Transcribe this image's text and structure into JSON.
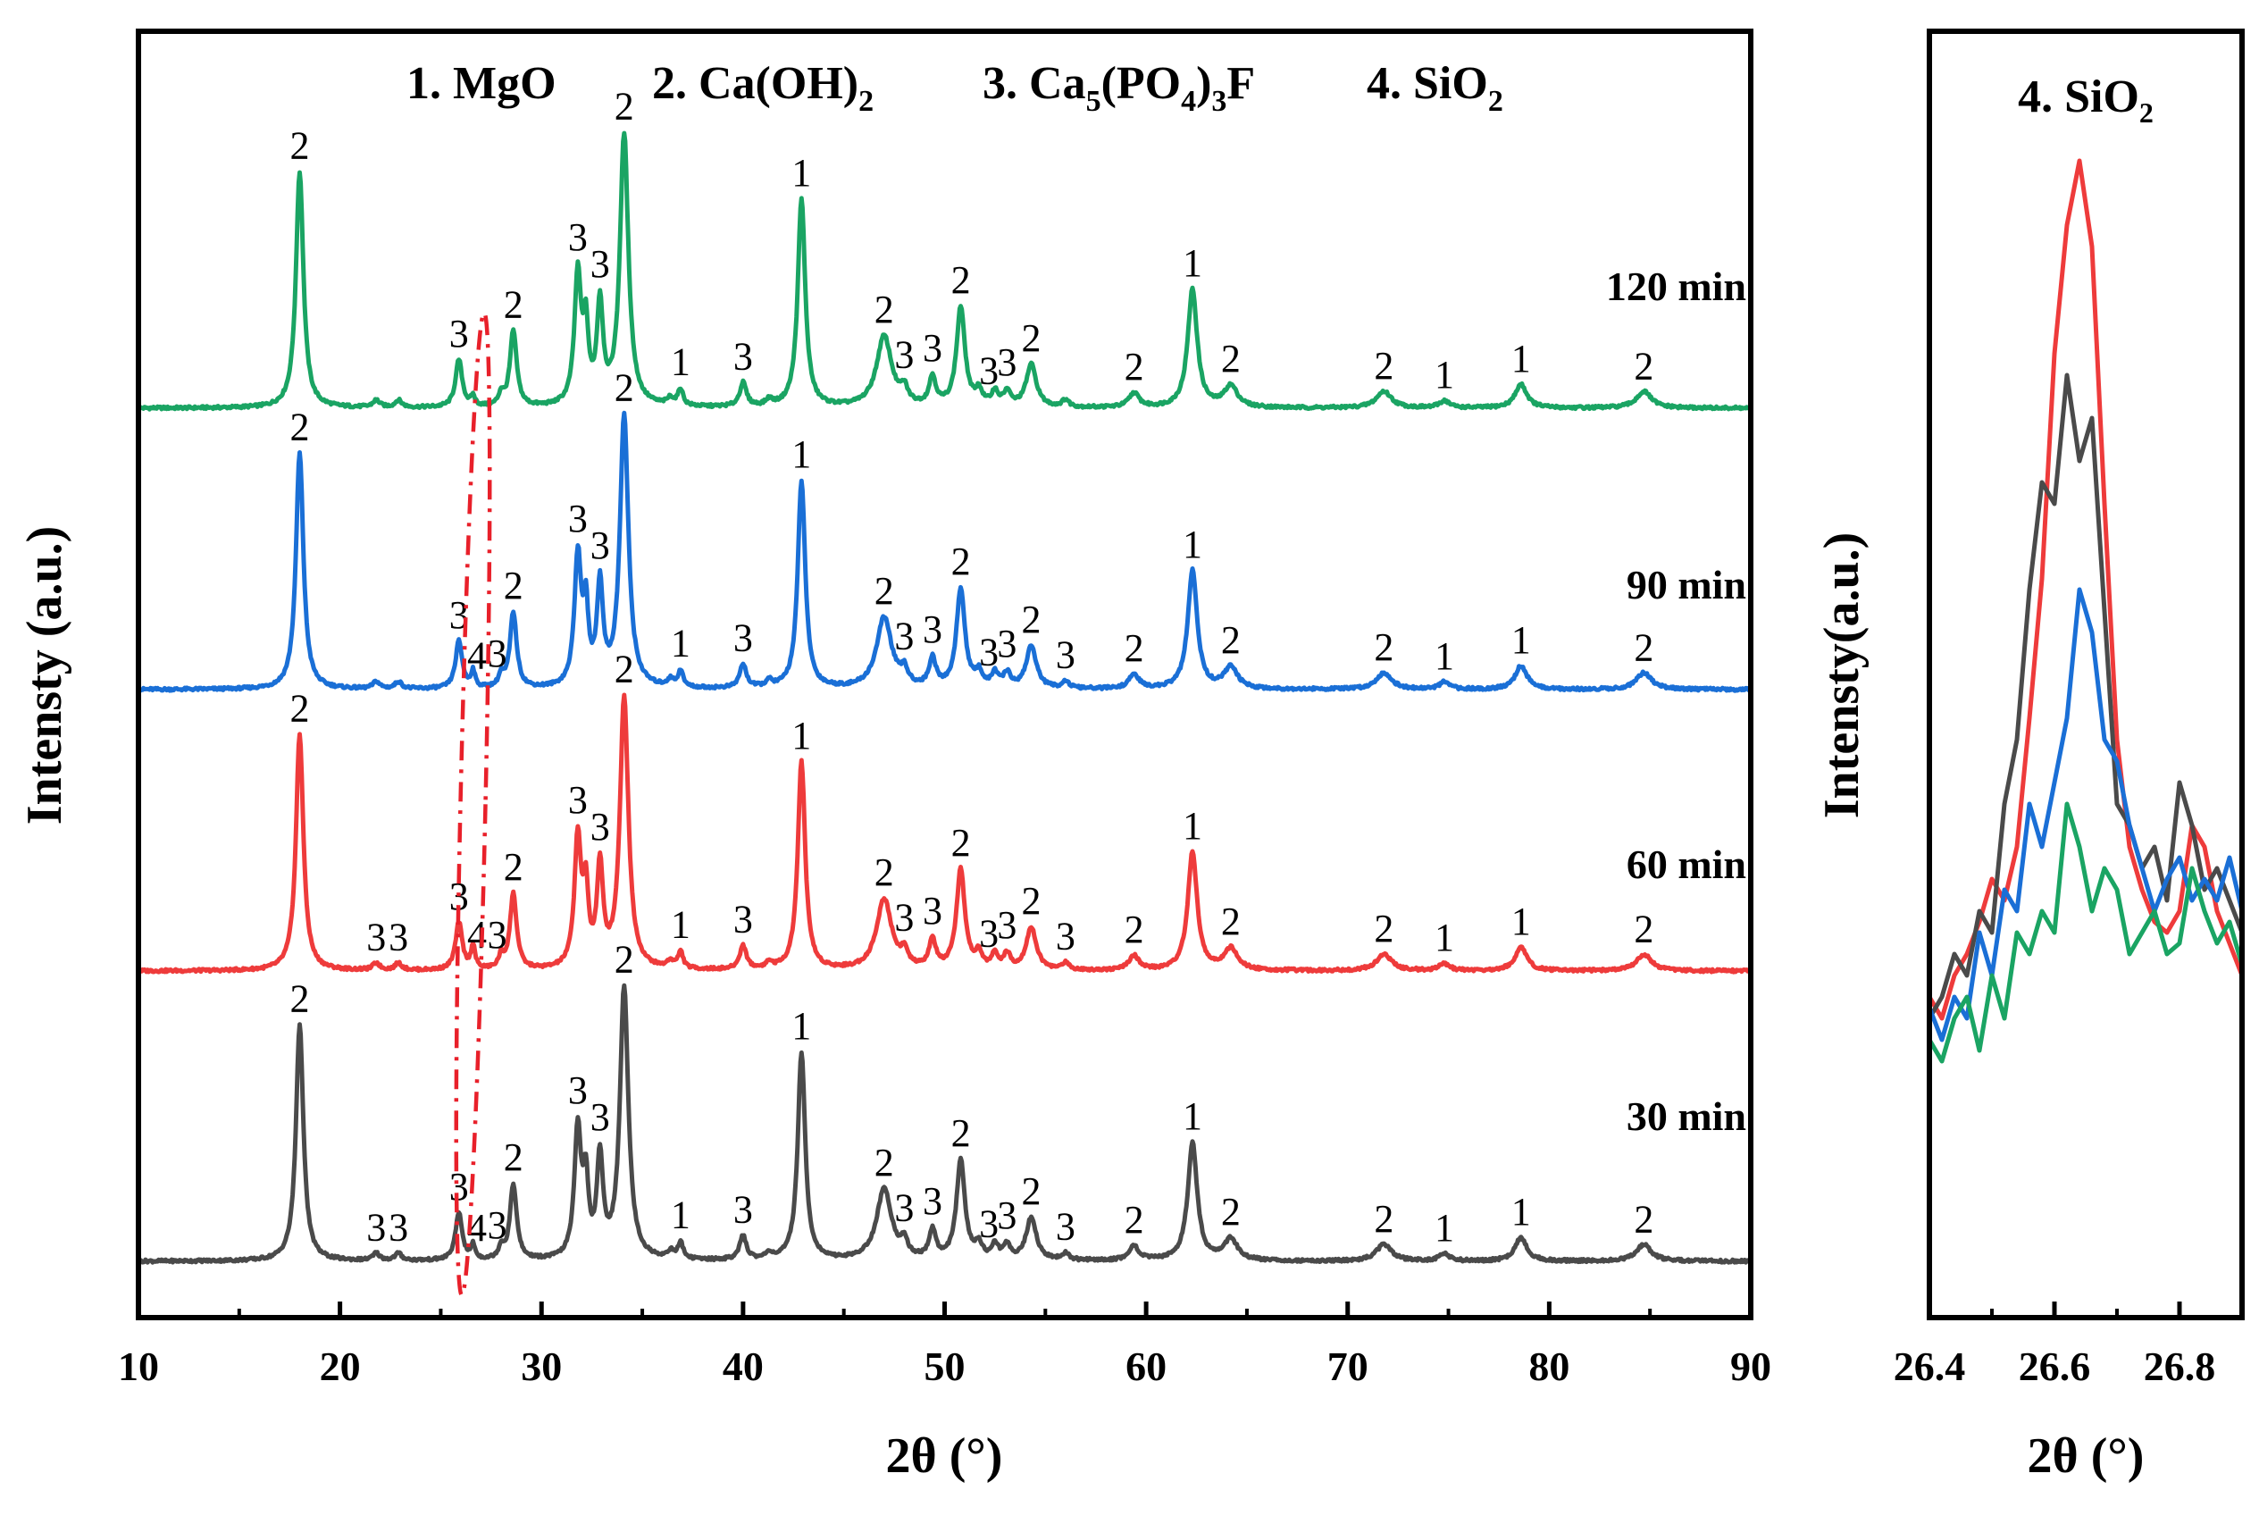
{
  "chart_data": [
    {
      "type": "line",
      "title": "",
      "legend": [
        "1. MgO",
        "2. Ca(OH)2",
        "3. Ca5(PO4)3F",
        "4. SiO2"
      ],
      "xlabel": "2θ (°)",
      "ylabel": "Intensty (a.u.)",
      "xlim": [
        10,
        90
      ],
      "xticks": [
        10,
        20,
        30,
        40,
        50,
        60,
        70,
        80,
        90
      ],
      "yticks_shown": false,
      "series": [
        {
          "name": "120 min",
          "color": "#1aa463",
          "offset": 3
        },
        {
          "name": "90 min",
          "color": "#1a6fd6",
          "offset": 2
        },
        {
          "name": "60 min",
          "color": "#ee3b3b",
          "offset": 1
        },
        {
          "name": "30 min",
          "color": "#4a4a4a",
          "offset": 0
        }
      ],
      "peaks": [
        {
          "x": 18.0,
          "h": 1.0,
          "w": 0.22
        },
        {
          "x": 34.1,
          "h": 1.15,
          "w": 0.25
        },
        {
          "x": 42.9,
          "h": 0.88,
          "w": 0.22
        },
        {
          "x": 31.8,
          "h": 0.55,
          "w": 0.2
        },
        {
          "x": 32.2,
          "h": 0.3,
          "w": 0.15
        },
        {
          "x": 32.9,
          "h": 0.42,
          "w": 0.18
        },
        {
          "x": 28.6,
          "h": 0.32,
          "w": 0.2
        },
        {
          "x": 25.9,
          "h": 0.2,
          "w": 0.2
        },
        {
          "x": 26.6,
          "h": 0.09,
          "w": 0.12
        },
        {
          "x": 28.0,
          "h": 0.05,
          "w": 0.15
        },
        {
          "x": 47.0,
          "h": 0.3,
          "w": 0.45
        },
        {
          "x": 48.0,
          "h": 0.06,
          "w": 0.2
        },
        {
          "x": 49.4,
          "h": 0.12,
          "w": 0.2
        },
        {
          "x": 50.8,
          "h": 0.42,
          "w": 0.25
        },
        {
          "x": 51.7,
          "h": 0.06,
          "w": 0.2
        },
        {
          "x": 52.5,
          "h": 0.06,
          "w": 0.2
        },
        {
          "x": 53.1,
          "h": 0.06,
          "w": 0.2
        },
        {
          "x": 54.3,
          "h": 0.18,
          "w": 0.3
        },
        {
          "x": 56.0,
          "h": 0.03,
          "w": 0.2
        },
        {
          "x": 59.4,
          "h": 0.06,
          "w": 0.3
        },
        {
          "x": 62.3,
          "h": 0.5,
          "w": 0.28
        },
        {
          "x": 64.2,
          "h": 0.09,
          "w": 0.4
        },
        {
          "x": 71.8,
          "h": 0.07,
          "w": 0.45
        },
        {
          "x": 74.8,
          "h": 0.03,
          "w": 0.3
        },
        {
          "x": 78.6,
          "h": 0.1,
          "w": 0.35
        },
        {
          "x": 84.7,
          "h": 0.07,
          "w": 0.45
        },
        {
          "x": 36.9,
          "h": 0.07,
          "w": 0.15
        },
        {
          "x": 40.0,
          "h": 0.1,
          "w": 0.2
        },
        {
          "x": 21.8,
          "h": 0.03,
          "w": 0.2
        },
        {
          "x": 22.9,
          "h": 0.03,
          "w": 0.2
        },
        {
          "x": 36.4,
          "h": 0.03,
          "w": 0.2
        },
        {
          "x": 41.3,
          "h": 0.025,
          "w": 0.2
        }
      ],
      "peak_labels": {
        "120 min": [
          {
            "x": 18.0,
            "t": "2"
          },
          {
            "x": 25.9,
            "t": "3"
          },
          {
            "x": 28.6,
            "t": "2"
          },
          {
            "x": 31.8,
            "t": "3"
          },
          {
            "x": 32.9,
            "t": "3"
          },
          {
            "x": 34.1,
            "t": "2"
          },
          {
            "x": 36.9,
            "t": "1"
          },
          {
            "x": 40.0,
            "t": "3"
          },
          {
            "x": 42.9,
            "t": "1"
          },
          {
            "x": 47.0,
            "t": "2"
          },
          {
            "x": 48.0,
            "t": "3"
          },
          {
            "x": 49.4,
            "t": "3"
          },
          {
            "x": 50.8,
            "t": "2"
          },
          {
            "x": 52.2,
            "t": "3"
          },
          {
            "x": 53.1,
            "t": "3"
          },
          {
            "x": 54.3,
            "t": "2"
          },
          {
            "x": 59.4,
            "t": "2"
          },
          {
            "x": 62.3,
            "t": "1"
          },
          {
            "x": 64.2,
            "t": "2"
          },
          {
            "x": 71.8,
            "t": "2"
          },
          {
            "x": 74.8,
            "t": "1"
          },
          {
            "x": 78.6,
            "t": "1"
          },
          {
            "x": 84.7,
            "t": "2"
          }
        ],
        "90 min": [
          {
            "x": 18.0,
            "t": "2"
          },
          {
            "x": 25.9,
            "t": "3"
          },
          {
            "x": 26.8,
            "t": "4"
          },
          {
            "x": 27.8,
            "t": "3"
          },
          {
            "x": 28.6,
            "t": "2"
          },
          {
            "x": 31.8,
            "t": "3"
          },
          {
            "x": 32.9,
            "t": "3"
          },
          {
            "x": 34.1,
            "t": "2"
          },
          {
            "x": 36.9,
            "t": "1"
          },
          {
            "x": 40.0,
            "t": "3"
          },
          {
            "x": 42.9,
            "t": "1"
          },
          {
            "x": 47.0,
            "t": "2"
          },
          {
            "x": 48.0,
            "t": "3"
          },
          {
            "x": 49.4,
            "t": "3"
          },
          {
            "x": 50.8,
            "t": "2"
          },
          {
            "x": 52.2,
            "t": "3"
          },
          {
            "x": 53.1,
            "t": "3"
          },
          {
            "x": 54.3,
            "t": "2"
          },
          {
            "x": 56.0,
            "t": "3"
          },
          {
            "x": 59.4,
            "t": "2"
          },
          {
            "x": 62.3,
            "t": "1"
          },
          {
            "x": 64.2,
            "t": "2"
          },
          {
            "x": 71.8,
            "t": "2"
          },
          {
            "x": 74.8,
            "t": "1"
          },
          {
            "x": 78.6,
            "t": "1"
          },
          {
            "x": 84.7,
            "t": "2"
          }
        ],
        "60 min": [
          {
            "x": 18.0,
            "t": "2"
          },
          {
            "x": 21.8,
            "t": "3"
          },
          {
            "x": 22.9,
            "t": "3"
          },
          {
            "x": 25.9,
            "t": "3"
          },
          {
            "x": 26.8,
            "t": "4"
          },
          {
            "x": 27.8,
            "t": "3"
          },
          {
            "x": 28.6,
            "t": "2"
          },
          {
            "x": 31.8,
            "t": "3"
          },
          {
            "x": 32.9,
            "t": "3"
          },
          {
            "x": 34.1,
            "t": "2"
          },
          {
            "x": 36.9,
            "t": "1"
          },
          {
            "x": 40.0,
            "t": "3"
          },
          {
            "x": 42.9,
            "t": "1"
          },
          {
            "x": 47.0,
            "t": "2"
          },
          {
            "x": 48.0,
            "t": "3"
          },
          {
            "x": 49.4,
            "t": "3"
          },
          {
            "x": 50.8,
            "t": "2"
          },
          {
            "x": 52.2,
            "t": "3"
          },
          {
            "x": 53.1,
            "t": "3"
          },
          {
            "x": 54.3,
            "t": "2"
          },
          {
            "x": 56.0,
            "t": "3"
          },
          {
            "x": 59.4,
            "t": "2"
          },
          {
            "x": 62.3,
            "t": "1"
          },
          {
            "x": 64.2,
            "t": "2"
          },
          {
            "x": 71.8,
            "t": "2"
          },
          {
            "x": 74.8,
            "t": "1"
          },
          {
            "x": 78.6,
            "t": "1"
          },
          {
            "x": 84.7,
            "t": "2"
          }
        ],
        "30 min": [
          {
            "x": 18.0,
            "t": "2"
          },
          {
            "x": 21.8,
            "t": "3"
          },
          {
            "x": 22.9,
            "t": "3"
          },
          {
            "x": 25.9,
            "t": "3"
          },
          {
            "x": 26.8,
            "t": "4"
          },
          {
            "x": 27.8,
            "t": "3"
          },
          {
            "x": 28.6,
            "t": "2"
          },
          {
            "x": 31.8,
            "t": "3"
          },
          {
            "x": 32.9,
            "t": "3"
          },
          {
            "x": 34.1,
            "t": "2"
          },
          {
            "x": 36.9,
            "t": "1"
          },
          {
            "x": 40.0,
            "t": "3"
          },
          {
            "x": 42.9,
            "t": "1"
          },
          {
            "x": 47.0,
            "t": "2"
          },
          {
            "x": 48.0,
            "t": "3"
          },
          {
            "x": 49.4,
            "t": "3"
          },
          {
            "x": 50.8,
            "t": "2"
          },
          {
            "x": 52.2,
            "t": "3"
          },
          {
            "x": 53.1,
            "t": "3"
          },
          {
            "x": 54.3,
            "t": "2"
          },
          {
            "x": 56.0,
            "t": "3"
          },
          {
            "x": 59.4,
            "t": "2"
          },
          {
            "x": 62.3,
            "t": "1"
          },
          {
            "x": 64.2,
            "t": "2"
          },
          {
            "x": 71.8,
            "t": "2"
          },
          {
            "x": 74.8,
            "t": "1"
          },
          {
            "x": 78.6,
            "t": "1"
          },
          {
            "x": 84.7,
            "t": "2"
          }
        ]
      },
      "highlight": {
        "shape": "dash-dot ellipse",
        "color": "#e8202a",
        "x_center": 26.6
      }
    },
    {
      "type": "line",
      "title": "4. SiO2",
      "xlabel": "2θ (°)",
      "ylabel": "Intensty(a.u.)",
      "xlim": [
        26.4,
        26.9
      ],
      "xticks": [
        26.4,
        26.6,
        26.8
      ],
      "ylim": [
        0,
        100
      ],
      "x": [
        26.4,
        26.42,
        26.44,
        26.46,
        26.48,
        26.5,
        26.52,
        26.54,
        26.56,
        26.58,
        26.6,
        26.62,
        26.64,
        26.66,
        26.68,
        26.7,
        26.72,
        26.74,
        26.76,
        26.78,
        26.8,
        26.82,
        26.84,
        26.86,
        26.88,
        26.9
      ],
      "series": [
        {
          "name": "60 min",
          "color": "#ee3b3b",
          "values": [
            22,
            20,
            24,
            26,
            29,
            33,
            31,
            36,
            48,
            61,
            82,
            94,
            100,
            92,
            68,
            46,
            36,
            32,
            29,
            28,
            30,
            38,
            36,
            30,
            27,
            24
          ]
        },
        {
          "name": "30 min",
          "color": "#4a4a4a",
          "values": [
            20,
            22,
            26,
            24,
            30,
            28,
            40,
            46,
            60,
            70,
            68,
            80,
            72,
            76,
            58,
            40,
            38,
            34,
            36,
            31,
            42,
            38,
            32,
            34,
            31,
            28
          ]
        },
        {
          "name": "90 min",
          "color": "#1a6fd6",
          "values": [
            21,
            18,
            22,
            20,
            28,
            24,
            32,
            30,
            40,
            36,
            42,
            48,
            60,
            56,
            46,
            44,
            38,
            34,
            30,
            33,
            35,
            31,
            33,
            31,
            35,
            30
          ]
        },
        {
          "name": "120 min",
          "color": "#1aa463",
          "values": [
            18,
            16,
            20,
            22,
            17,
            24,
            20,
            28,
            26,
            30,
            28,
            40,
            36,
            30,
            34,
            32,
            26,
            28,
            30,
            26,
            27,
            34,
            30,
            27,
            29,
            25
          ]
        }
      ]
    }
  ]
}
